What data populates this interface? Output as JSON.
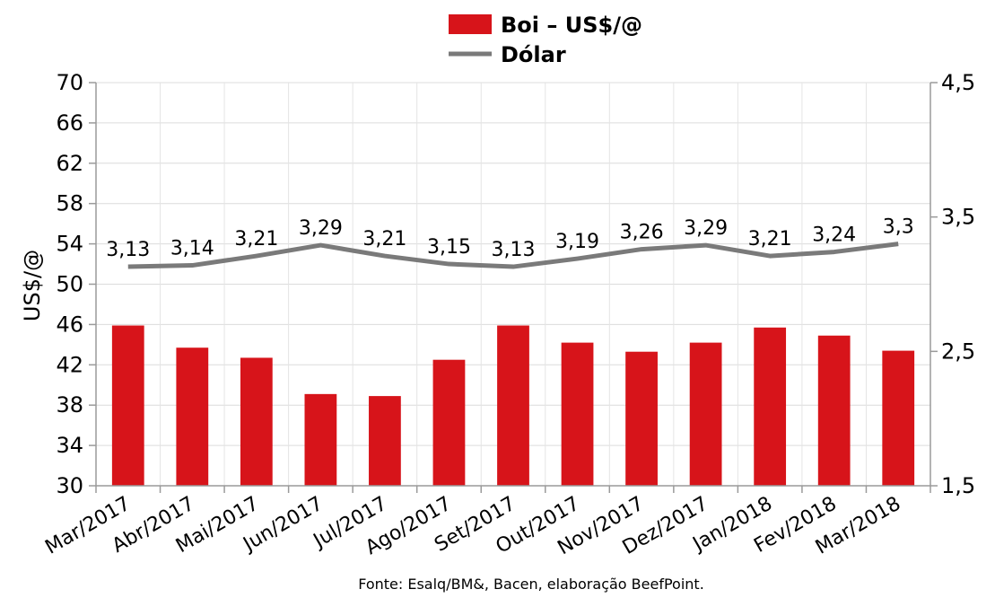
{
  "chart_data": {
    "type": "bar",
    "categories": [
      "Mar/2017",
      "Abr/2017",
      "Mai/2017",
      "Jun/2017",
      "Jul/2017",
      "Ago/2017",
      "Set/2017",
      "Out/2017",
      "Nov/2017",
      "Dez/2017",
      "Jan/2018",
      "Fev/2018",
      "Mar/2018"
    ],
    "series": [
      {
        "name": "Boi – US$/@",
        "type": "bar",
        "axis": "left",
        "color": "#d7141a",
        "values": [
          45.9,
          43.7,
          42.7,
          39.1,
          38.9,
          42.5,
          45.9,
          44.2,
          43.3,
          44.2,
          45.7,
          44.9,
          43.4
        ]
      },
      {
        "name": "Dólar",
        "type": "line",
        "axis": "right",
        "color": "#7a7a7a",
        "values": [
          3.13,
          3.14,
          3.21,
          3.29,
          3.21,
          3.15,
          3.13,
          3.19,
          3.26,
          3.29,
          3.21,
          3.24,
          3.3
        ],
        "labels": [
          "3,13",
          "3,14",
          "3,21",
          "3,29",
          "3,21",
          "3,15",
          "3,13",
          "3,19",
          "3,26",
          "3,29",
          "3,21",
          "3,24",
          "3,3"
        ]
      }
    ],
    "ylabel": "US$/@",
    "ylim": [
      30,
      70
    ],
    "yticks": [
      "30",
      "34",
      "38",
      "42",
      "46",
      "50",
      "54",
      "58",
      "62",
      "66",
      "70"
    ],
    "y2lim": [
      1.5,
      4.5
    ],
    "y2ticks": [
      "1,5",
      "2,5",
      "3,5",
      "4,5"
    ],
    "grid": true,
    "legend_position": "top-center",
    "source": "Fonte: Esalq/BM&, Bacen, elaboração BeefPoint."
  }
}
